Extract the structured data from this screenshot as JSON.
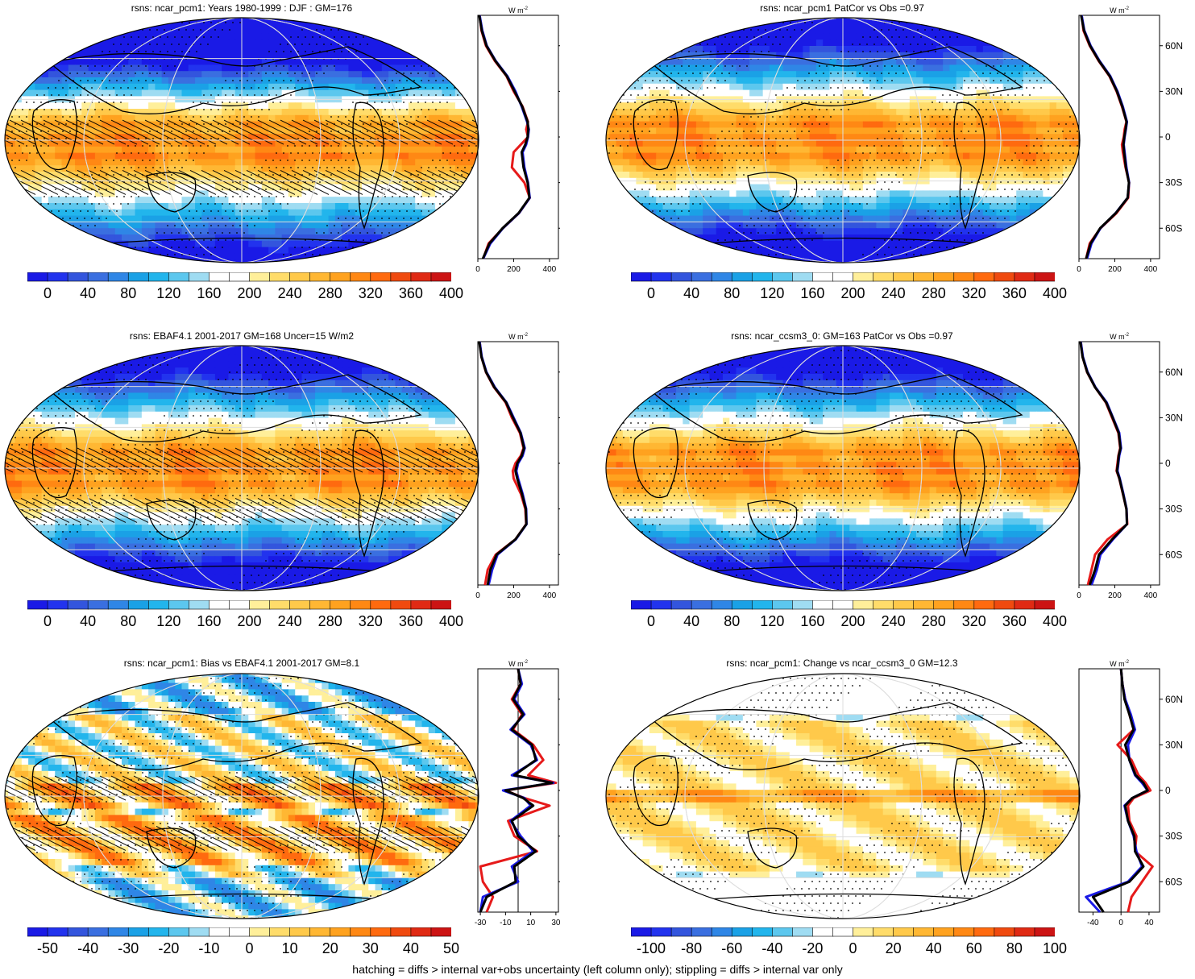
{
  "footer": "hatching = diffs > internal var+obs uncertainty (left column only); stippling = diffs > internal var only",
  "zonal_unit": "W m",
  "zonal_unit_sup": "-2",
  "lat_labels": [
    "60N",
    "30N",
    "0",
    "30S",
    "60S"
  ],
  "colors": {
    "abs": [
      "#1a1ae6",
      "#2233ee",
      "#3355dd",
      "#3a6fe0",
      "#2f86e6",
      "#1aa1e6",
      "#22b5ec",
      "#5cc7ee",
      "#9fdcf2",
      "#ffffff",
      "#ffffff",
      "#ffef9a",
      "#ffdc6a",
      "#ffc94a",
      "#ffb733",
      "#ffa21f",
      "#ff8814",
      "#ff6a0f",
      "#f04a0f",
      "#e02a14",
      "#cc1414"
    ],
    "obs_line": "#e61a1a",
    "model_line": "#1a1ae6",
    "ens_line": "#000000"
  },
  "chart_data": [
    {
      "type": "heatmap",
      "title": "rsns: ncar_pcm1: Years 1980-1999 : DJF : GM=176",
      "colorbar_labels": [
        "0",
        "40",
        "80",
        "120",
        "160",
        "200",
        "240",
        "280",
        "320",
        "360",
        "400"
      ],
      "zonal_xticks": [
        "0",
        "200",
        "400"
      ],
      "zonal_xlim": [
        0,
        450
      ],
      "lat": [
        80,
        70,
        60,
        50,
        40,
        30,
        20,
        10,
        5,
        0,
        -5,
        -10,
        -20,
        -30,
        -40,
        -50,
        -60,
        -70,
        -80
      ],
      "zonal_obs": [
        10,
        20,
        45,
        95,
        160,
        200,
        250,
        280,
        270,
        280,
        240,
        200,
        190,
        260,
        290,
        230,
        140,
        60,
        30
      ],
      "zonal_model": [
        10,
        25,
        50,
        100,
        165,
        210,
        245,
        275,
        285,
        280,
        270,
        250,
        260,
        280,
        290,
        230,
        140,
        70,
        30
      ],
      "zonal_ens": [
        8,
        22,
        48,
        98,
        162,
        205,
        248,
        278,
        282,
        278,
        265,
        245,
        255,
        278,
        288,
        228,
        138,
        65,
        28
      ],
      "field": "abs-djf"
    },
    {
      "type": "heatmap",
      "title": "rsns: ncar_pcm1 PatCor vs Obs =0.97",
      "colorbar_labels": [
        "0",
        "40",
        "80",
        "120",
        "160",
        "200",
        "240",
        "280",
        "320",
        "360",
        "400"
      ],
      "zonal_xticks": [
        "0",
        "200",
        "400"
      ],
      "zonal_xlim": [
        0,
        450
      ],
      "lat": [
        80,
        70,
        60,
        50,
        40,
        30,
        20,
        10,
        5,
        0,
        -5,
        -10,
        -20,
        -30,
        -40,
        -50,
        -60,
        -70,
        -80
      ],
      "zonal_obs": [
        15,
        25,
        60,
        110,
        170,
        210,
        240,
        265,
        255,
        250,
        240,
        245,
        260,
        280,
        275,
        210,
        120,
        60,
        40
      ],
      "zonal_model": [
        15,
        30,
        65,
        115,
        175,
        215,
        245,
        268,
        262,
        255,
        250,
        255,
        265,
        280,
        272,
        205,
        120,
        70,
        45
      ],
      "zonal_ens": [
        12,
        28,
        62,
        112,
        172,
        212,
        242,
        266,
        260,
        253,
        248,
        252,
        262,
        279,
        272,
        206,
        118,
        65,
        40
      ],
      "field": "abs-ann"
    },
    {
      "type": "heatmap",
      "title": "rsns: EBAF4.1 2001-2017 GM=168 Uncer=15 W/m2",
      "colorbar_labels": [
        "0",
        "40",
        "80",
        "120",
        "160",
        "200",
        "240",
        "280",
        "320",
        "360",
        "400"
      ],
      "zonal_xticks": [
        "0",
        "200",
        "400"
      ],
      "zonal_xlim": [
        0,
        450
      ],
      "lat": [
        80,
        70,
        60,
        50,
        40,
        30,
        20,
        10,
        5,
        0,
        -5,
        -10,
        -20,
        -30,
        -40,
        -50,
        -60,
        -70,
        -80
      ],
      "zonal_obs": [
        10,
        20,
        45,
        90,
        155,
        190,
        235,
        255,
        240,
        210,
        195,
        200,
        240,
        265,
        270,
        210,
        100,
        55,
        40
      ],
      "zonal_model": [
        10,
        22,
        48,
        95,
        160,
        200,
        240,
        262,
        250,
        225,
        215,
        225,
        250,
        270,
        272,
        212,
        110,
        80,
        60
      ],
      "zonal_ens": [
        8,
        20,
        46,
        92,
        158,
        196,
        238,
        258,
        245,
        220,
        210,
        220,
        246,
        268,
        271,
        210,
        105,
        70,
        55
      ],
      "field": "abs-obs"
    },
    {
      "type": "heatmap",
      "title": "rsns: ncar_ccsm3_0: GM=163 PatCor vs Obs =0.97",
      "colorbar_labels": [
        "0",
        "40",
        "80",
        "120",
        "160",
        "200",
        "240",
        "280",
        "320",
        "360",
        "400"
      ],
      "zonal_xticks": [
        "0",
        "200",
        "400"
      ],
      "zonal_xlim": [
        0,
        450
      ],
      "lat": [
        80,
        70,
        60,
        50,
        40,
        30,
        20,
        10,
        5,
        0,
        -5,
        -10,
        -20,
        -30,
        -40,
        -50,
        -60,
        -70,
        -80
      ],
      "zonal_obs": [
        10,
        20,
        45,
        90,
        150,
        185,
        220,
        230,
        220,
        215,
        210,
        225,
        245,
        265,
        270,
        160,
        90,
        70,
        50
      ],
      "zonal_model": [
        10,
        22,
        48,
        92,
        155,
        190,
        225,
        235,
        225,
        220,
        215,
        228,
        248,
        266,
        268,
        190,
        120,
        100,
        70
      ],
      "zonal_ens": [
        8,
        20,
        46,
        90,
        152,
        188,
        222,
        232,
        222,
        218,
        212,
        226,
        246,
        265,
        268,
        185,
        112,
        90,
        60
      ],
      "field": "abs-ccsm"
    },
    {
      "type": "heatmap",
      "title": "rsns: ncar_pcm1: Bias vs EBAF4.1 2001-2017 GM=8.1",
      "colorbar_labels": [
        "-50",
        "-40",
        "-30",
        "-20",
        "-10",
        "0",
        "10",
        "20",
        "30",
        "40",
        "50"
      ],
      "zonal_xticks": [
        "-30",
        "-10",
        "10",
        "30"
      ],
      "zonal_xlim": [
        -32,
        32
      ],
      "lat": [
        80,
        70,
        60,
        50,
        40,
        30,
        20,
        10,
        5,
        0,
        -5,
        -10,
        -20,
        -30,
        -40,
        -50,
        -60,
        -70,
        -80
      ],
      "zonal_obs": [
        0,
        2,
        -5,
        3,
        -4,
        12,
        20,
        8,
        30,
        -10,
        5,
        25,
        -8,
        -3,
        15,
        -30,
        -28,
        -20,
        -25
      ],
      "zonal_model": [
        0,
        3,
        -3,
        5,
        -6,
        10,
        15,
        -5,
        28,
        -12,
        5,
        10,
        -6,
        2,
        12,
        -5,
        0,
        -28,
        -30
      ],
      "zonal_ens": [
        0,
        2,
        -4,
        4,
        -5,
        11,
        14,
        -3,
        27,
        -10,
        4,
        12,
        -5,
        0,
        14,
        -3,
        -2,
        -25,
        -30
      ],
      "field": "bias"
    },
    {
      "type": "heatmap",
      "title": "rsns: ncar_pcm1: Change vs ncar_ccsm3_0 GM=12.3",
      "colorbar_labels": [
        "-100",
        "-80",
        "-60",
        "-40",
        "-20",
        "0",
        "20",
        "40",
        "60",
        "80",
        "100"
      ],
      "zonal_xticks": [
        "-40",
        "0",
        "40"
      ],
      "zonal_xlim": [
        -60,
        55
      ],
      "lat": [
        80,
        70,
        60,
        50,
        40,
        30,
        20,
        10,
        5,
        0,
        -5,
        -10,
        -20,
        -30,
        -40,
        -50,
        -60,
        -70,
        -80
      ],
      "zonal_obs": [
        0,
        2,
        6,
        12,
        18,
        -5,
        15,
        25,
        35,
        42,
        18,
        10,
        12,
        22,
        20,
        45,
        30,
        15,
        10
      ],
      "zonal_model": [
        0,
        2,
        6,
        14,
        20,
        10,
        12,
        20,
        30,
        38,
        16,
        5,
        10,
        18,
        22,
        30,
        10,
        -50,
        -30
      ],
      "zonal_ens": [
        0,
        2,
        5,
        12,
        18,
        6,
        12,
        21,
        32,
        38,
        16,
        6,
        10,
        19,
        20,
        32,
        12,
        -40,
        -25
      ],
      "field": "change"
    }
  ]
}
